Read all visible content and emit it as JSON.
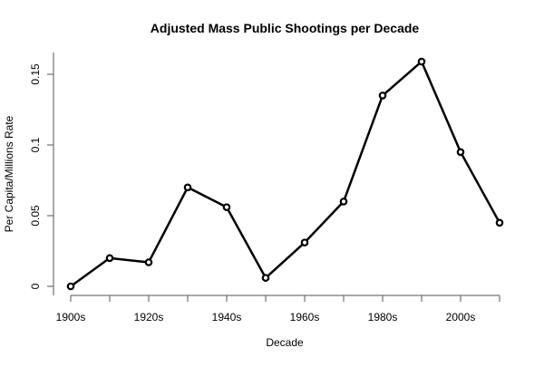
{
  "chart_data": {
    "type": "line",
    "title": "Adjusted Mass Public Shootings per Decade",
    "xlabel": "Decade",
    "ylabel": "Per Capita/Millions Rate",
    "categories": [
      "1900s",
      "1910s",
      "1920s",
      "1930s",
      "1940s",
      "1950s",
      "1960s",
      "1970s",
      "1980s",
      "1990s",
      "2000s",
      "2010s"
    ],
    "x_tick_labels": [
      "1900s",
      "1920s",
      "1940s",
      "1960s",
      "1980s",
      "2000s"
    ],
    "y_ticks": [
      0,
      0.05,
      0.1,
      0.15
    ],
    "y_tick_labels": [
      "0",
      "0.05",
      "0.1",
      "0.15"
    ],
    "values": [
      0,
      0.02,
      0.017,
      0.07,
      0.056,
      0.006,
      0.031,
      0.06,
      0.135,
      0.159,
      0.095,
      0.045
    ],
    "ylim": [
      0,
      0.16
    ],
    "grid": false,
    "line_color": "#000000",
    "marker": "open-circle"
  }
}
